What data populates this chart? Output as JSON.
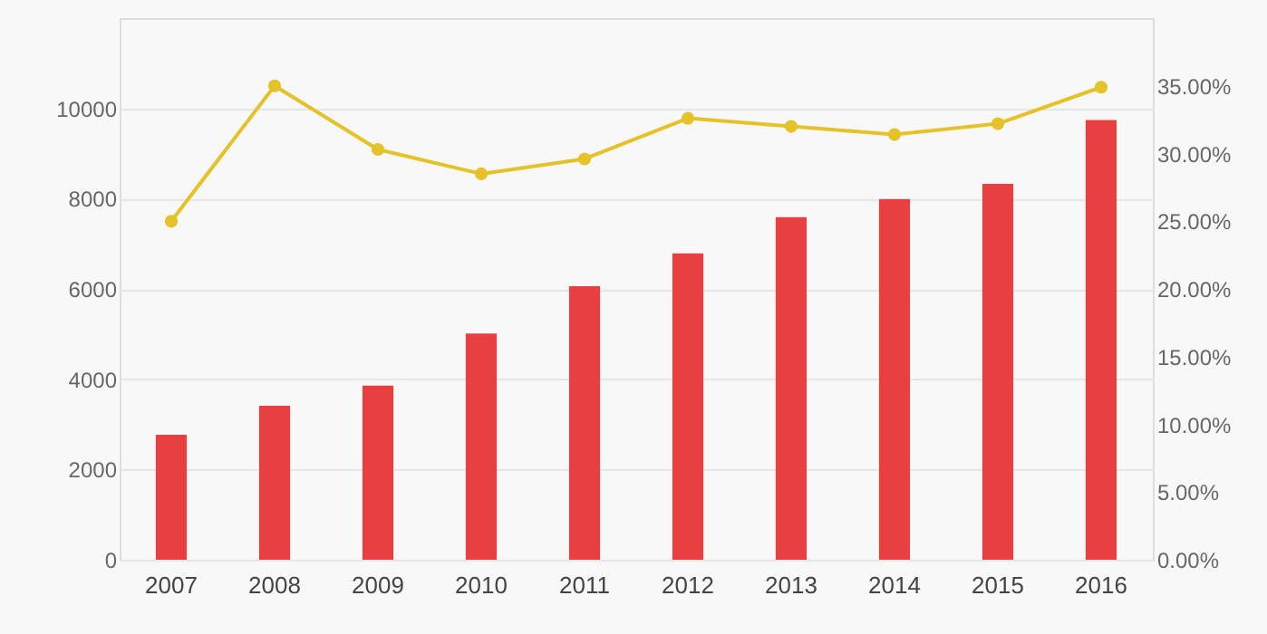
{
  "chart_data": {
    "type": "bar",
    "categories": [
      "2007",
      "2008",
      "2009",
      "2010",
      "2011",
      "2012",
      "2013",
      "2014",
      "2015",
      "2016"
    ],
    "series": [
      {
        "color": "#e84040",
        "values": [
          2770,
          3410,
          3860,
          5010,
          6060,
          6790,
          7590,
          7990,
          8330,
          9740
        ]
      },
      {
        "type": "line",
        "axis": "y2",
        "color": "#e6c229",
        "marker": "circle",
        "values": [
          25.0,
          35.0,
          30.3,
          28.5,
          29.6,
          32.6,
          32.0,
          31.4,
          32.2,
          34.9
        ]
      }
    ],
    "ylim": [
      0,
      12000
    ],
    "yticks": [
      0,
      2000,
      4000,
      6000,
      8000,
      10000
    ],
    "y2lim": [
      0,
      40
    ],
    "y2ticks": [
      {
        "value": 0,
        "label": "0.00%"
      },
      {
        "value": 5,
        "label": "5.00%"
      },
      {
        "value": 10,
        "label": "10.00%"
      },
      {
        "value": 15,
        "label": "15.00%"
      },
      {
        "value": 20,
        "label": "20.00%"
      },
      {
        "value": 25,
        "label": "25.00%"
      },
      {
        "value": 30,
        "label": "30.00%"
      },
      {
        "value": 35,
        "label": "35.00%"
      }
    ],
    "grid": "y"
  }
}
